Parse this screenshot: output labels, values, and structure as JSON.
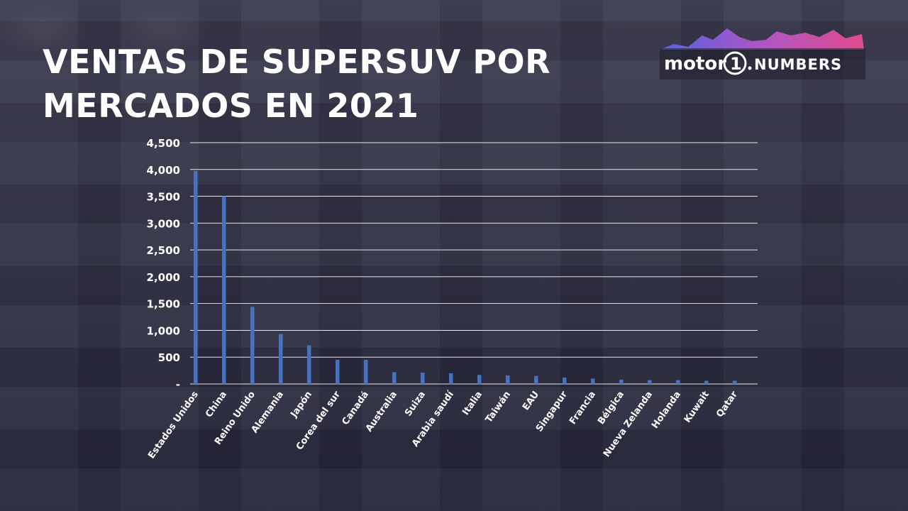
{
  "title_lines": [
    "VENTAS DE SUPERSUV POR",
    "MERCADOS EN 2021"
  ],
  "logo": {
    "text_motor": "motor",
    "text_one": "1",
    "text_numbers": "NUMBERS"
  },
  "colors": {
    "bar": "#4472c4",
    "text": "#ffffff",
    "grid": "#e6e6ea"
  },
  "chart_data": {
    "type": "bar",
    "title": "VENTAS DE SUPERSUV POR MERCADOS EN 2021",
    "categories": [
      "Estados Unidos",
      "China",
      "Reino Unido",
      "Alemania",
      "Japón",
      "Corea del sur",
      "Canadá",
      "Australia",
      "Suiza",
      "Arabia saudí",
      "Italia",
      "Taiwán",
      "EAU",
      "Singapur",
      "Francia",
      "Bélgica",
      "Nueva Zelanda",
      "Holanda",
      "Kuwait",
      "Qatar"
    ],
    "values": [
      3970,
      3500,
      1440,
      930,
      720,
      450,
      450,
      220,
      210,
      200,
      170,
      160,
      150,
      120,
      100,
      80,
      70,
      70,
      60,
      60
    ],
    "ylim": [
      0,
      4500
    ],
    "yticks": [
      0,
      500,
      1000,
      1500,
      2000,
      2500,
      3000,
      3500,
      4000,
      4500
    ],
    "ytick_labels": [
      "-",
      "500",
      "1,000",
      "1,500",
      "2,000",
      "2,500",
      "3,000",
      "3,500",
      "4,000",
      "4,500"
    ],
    "xlabel": "",
    "ylabel": "",
    "grid": true
  }
}
